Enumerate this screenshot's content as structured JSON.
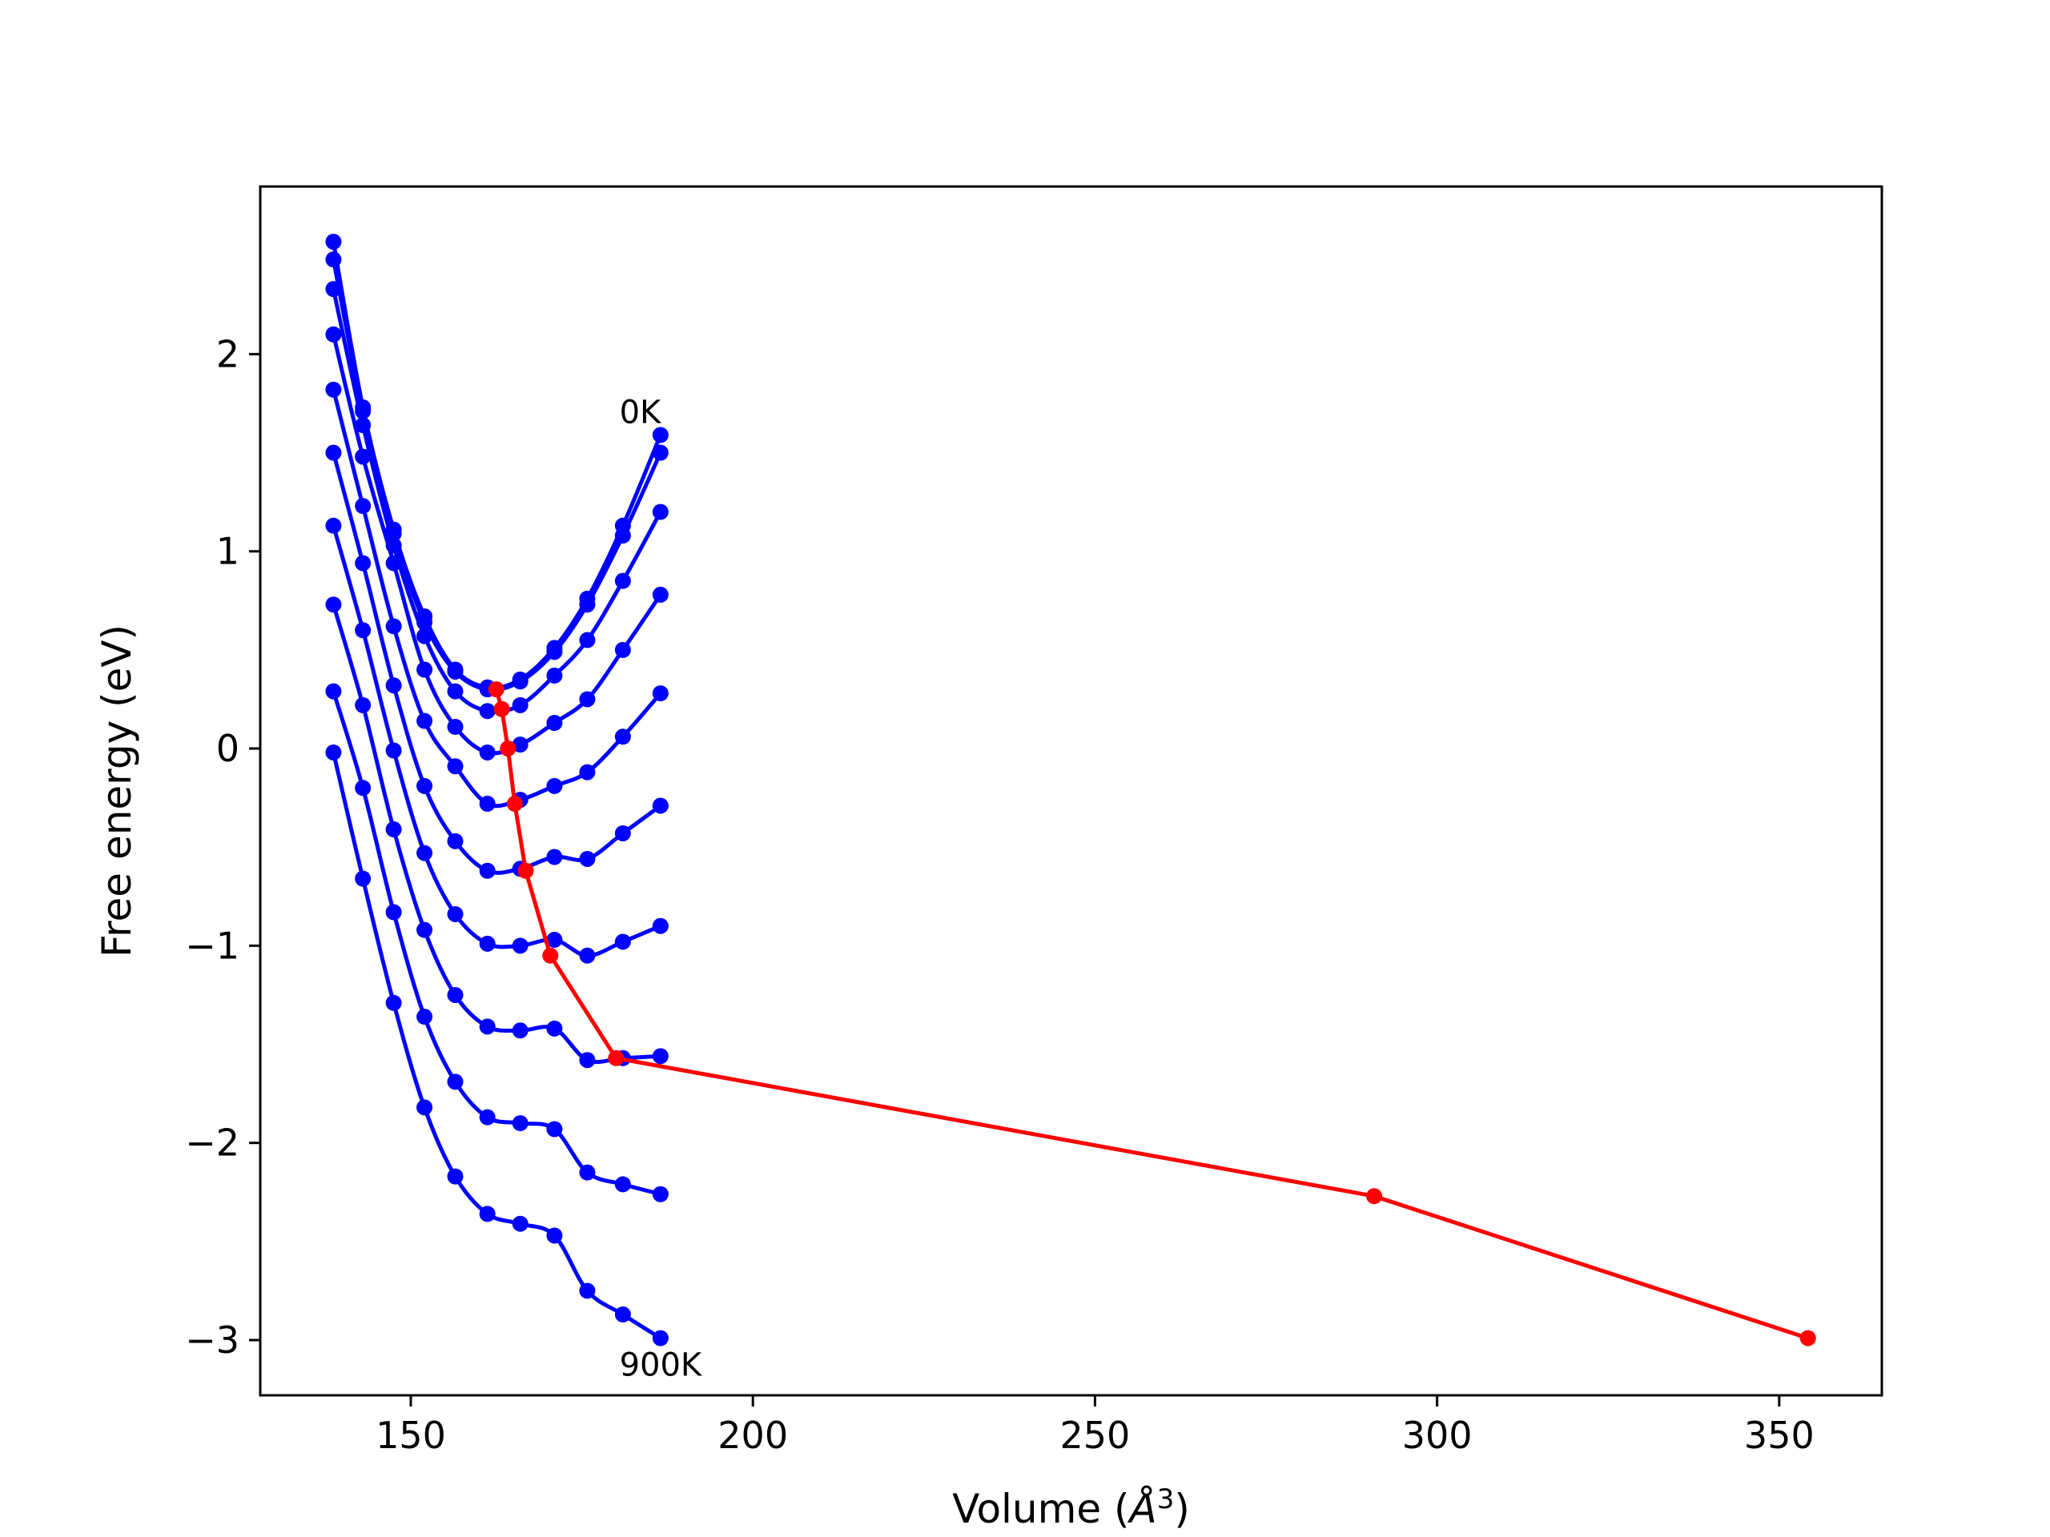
{
  "chart_data": {
    "type": "scatter",
    "xlabel": "Volume (Å³)",
    "xlabel_parts": {
      "pre": "Volume (",
      "sym": "Å",
      "sup": "3",
      "post": ")"
    },
    "ylabel": "Free energy (eV)",
    "xlim": [
      128,
      365
    ],
    "ylim": [
      -3.28,
      2.85
    ],
    "xticks": [
      150,
      200,
      250,
      300,
      350
    ],
    "yticks": [
      2,
      1,
      0,
      -1,
      -2,
      -3
    ],
    "ytick_labels": [
      "2",
      "1",
      "0",
      "−1",
      "−2",
      "−3"
    ],
    "grid": false,
    "legend": "none",
    "colors": {
      "curves": "#0000ff",
      "minima_line": "#ff0000",
      "frame": "#000000"
    },
    "annotations": [
      {
        "text": "0K",
        "x": 180.5,
        "y": 1.65
      },
      {
        "text": "900K",
        "x": 180.5,
        "y": -3.18
      }
    ],
    "volumes": [
      138.7,
      143.0,
      147.5,
      152.0,
      156.5,
      161.2,
      166.0,
      171.0,
      175.8,
      181.0,
      186.5
    ],
    "series": [
      {
        "y": [
          2.57,
          1.73,
          1.11,
          0.67,
          0.4,
          0.31,
          0.35,
          0.51,
          0.76,
          1.13,
          1.59
        ]
      },
      {
        "y": [
          2.48,
          1.71,
          1.09,
          0.64,
          0.39,
          0.3,
          0.34,
          0.49,
          0.73,
          1.08,
          1.5
        ]
      },
      {
        "y": [
          2.33,
          1.64,
          1.03,
          0.57,
          0.29,
          0.19,
          0.22,
          0.37,
          0.55,
          0.85,
          1.2
        ]
      },
      {
        "y": [
          2.1,
          1.48,
          0.94,
          0.4,
          0.11,
          -0.02,
          0.02,
          0.13,
          0.25,
          0.5,
          0.78
        ]
      },
      {
        "y": [
          1.82,
          1.23,
          0.62,
          0.14,
          -0.09,
          -0.28,
          -0.26,
          -0.19,
          -0.12,
          0.06,
          0.28
        ]
      },
      {
        "y": [
          1.5,
          0.94,
          0.32,
          -0.19,
          -0.47,
          -0.62,
          -0.61,
          -0.55,
          -0.56,
          -0.43,
          -0.29
        ]
      },
      {
        "y": [
          1.13,
          0.6,
          -0.01,
          -0.53,
          -0.84,
          -0.99,
          -1.0,
          -0.97,
          -1.05,
          -0.98,
          -0.9
        ]
      },
      {
        "y": [
          0.73,
          0.22,
          -0.41,
          -0.92,
          -1.25,
          -1.41,
          -1.43,
          -1.42,
          -1.58,
          -1.57,
          -1.56
        ]
      },
      {
        "y": [
          0.29,
          -0.2,
          -0.83,
          -1.36,
          -1.69,
          -1.87,
          -1.9,
          -1.93,
          -2.15,
          -2.21,
          -2.26
        ]
      },
      {
        "y": [
          -0.02,
          -0.66,
          -1.29,
          -1.82,
          -2.17,
          -2.36,
          -2.41,
          -2.47,
          -2.75,
          -2.87,
          -2.99
        ]
      }
    ],
    "minima": {
      "x": [
        162.5,
        163.3,
        164.2,
        165.2,
        166.8,
        170.4,
        180.0,
        290.8,
        354.2
      ],
      "y": [
        0.3,
        0.2,
        0.0,
        -0.28,
        -0.62,
        -1.05,
        -1.57,
        -2.27,
        -2.99
      ]
    }
  }
}
